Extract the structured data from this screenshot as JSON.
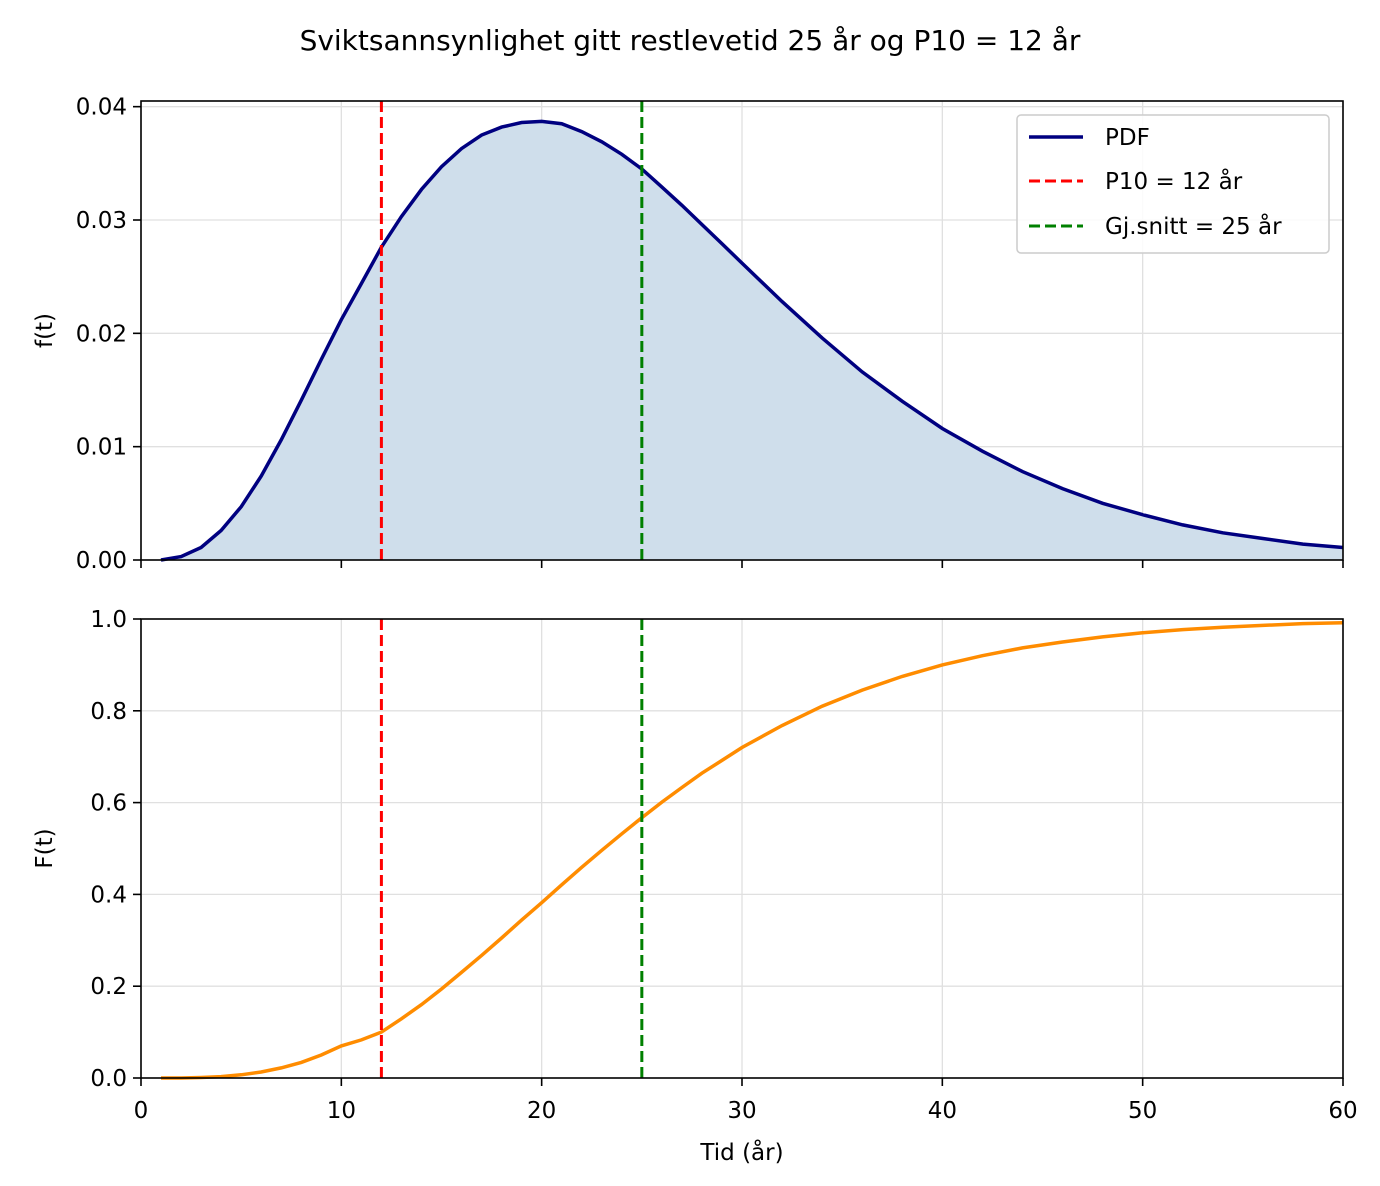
{
  "title": "Sviktsannsynlighet gitt restlevetid 25 år og P10 = 12 år",
  "colors": {
    "pdf_line": "#000080",
    "pdf_fill": "#cfdeeb",
    "cdf_line": "#ff8c00",
    "p10_line": "#ff0000",
    "mean_line": "#008000",
    "grid": "#e0e0e0"
  },
  "chart_data": [
    {
      "type": "area",
      "ylabel": "f(t)",
      "xlabel": "",
      "xlim": [
        0,
        60
      ],
      "ylim": [
        0,
        0.0405
      ],
      "grid": true,
      "legend_placement": "top-right",
      "x_ticks": [
        0,
        10,
        20,
        30,
        40,
        50,
        60
      ],
      "x_tick_labels_shown": false,
      "y_ticks": [
        0.0,
        0.01,
        0.02,
        0.03,
        0.04
      ],
      "y_tick_labels": [
        "0.00",
        "0.01",
        "0.02",
        "0.03",
        "0.04"
      ],
      "series": [
        {
          "name": "PDF",
          "x": [
            1,
            2,
            3,
            4,
            5,
            6,
            7,
            8,
            9,
            10,
            11,
            12,
            13,
            14,
            15,
            16,
            17,
            18,
            19,
            20,
            21,
            22,
            23,
            24,
            25,
            26,
            27,
            28,
            29,
            30,
            32,
            34,
            36,
            38,
            40,
            42,
            44,
            46,
            48,
            50,
            52,
            54,
            56,
            58,
            60
          ],
          "y": [
            0.0,
            0.0003,
            0.0011,
            0.0026,
            0.0047,
            0.0074,
            0.0106,
            0.0141,
            0.0177,
            0.0212,
            0.0244,
            0.0276,
            0.0303,
            0.0327,
            0.0347,
            0.0363,
            0.0375,
            0.0382,
            0.0386,
            0.0387,
            0.0385,
            0.0378,
            0.0369,
            0.0358,
            0.0345,
            0.0329,
            0.0313,
            0.0296,
            0.0279,
            0.0262,
            0.0228,
            0.0196,
            0.0166,
            0.014,
            0.0116,
            0.0096,
            0.0078,
            0.0063,
            0.005,
            0.004,
            0.0031,
            0.0024,
            0.0019,
            0.0014,
            0.0011
          ]
        }
      ],
      "vlines": [
        {
          "name": "P10 = 12 år",
          "x": 12,
          "style": "dashed"
        },
        {
          "name": "Gj.snitt = 25 år",
          "x": 25,
          "style": "dashed"
        }
      ]
    },
    {
      "type": "line",
      "ylabel": "F(t)",
      "xlabel": "Tid (år)",
      "xlim": [
        0,
        60
      ],
      "ylim": [
        0,
        1.0
      ],
      "grid": true,
      "x_ticks": [
        0,
        10,
        20,
        30,
        40,
        50,
        60
      ],
      "x_tick_labels": [
        "0",
        "10",
        "20",
        "30",
        "40",
        "50",
        "60"
      ],
      "y_ticks": [
        0.0,
        0.2,
        0.4,
        0.6,
        0.8,
        1.0
      ],
      "y_tick_labels": [
        "0.0",
        "0.2",
        "0.4",
        "0.6",
        "0.8",
        "1.0"
      ],
      "series": [
        {
          "name": "",
          "x": [
            1,
            2,
            3,
            4,
            5,
            6,
            7,
            8,
            9,
            10,
            11,
            12,
            13,
            14,
            15,
            16,
            17,
            18,
            19,
            20,
            21,
            22,
            23,
            24,
            25,
            26,
            27,
            28,
            29,
            30,
            32,
            34,
            36,
            38,
            40,
            42,
            44,
            46,
            48,
            50,
            52,
            54,
            56,
            58,
            60
          ],
          "y": [
            0.0,
            0.0,
            0.001,
            0.003,
            0.007,
            0.013,
            0.022,
            0.034,
            0.05,
            0.07,
            0.083,
            0.1,
            0.129,
            0.16,
            0.194,
            0.23,
            0.267,
            0.305,
            0.344,
            0.382,
            0.421,
            0.459,
            0.496,
            0.532,
            0.567,
            0.601,
            0.633,
            0.664,
            0.692,
            0.72,
            0.768,
            0.81,
            0.845,
            0.875,
            0.9,
            0.92,
            0.937,
            0.95,
            0.961,
            0.97,
            0.977,
            0.982,
            0.986,
            0.99,
            0.992
          ]
        }
      ],
      "vlines": [
        {
          "name": "P10 = 12 år",
          "x": 12,
          "style": "dashed"
        },
        {
          "name": "Gj.snitt = 25 år",
          "x": 25,
          "style": "dashed"
        }
      ]
    }
  ]
}
